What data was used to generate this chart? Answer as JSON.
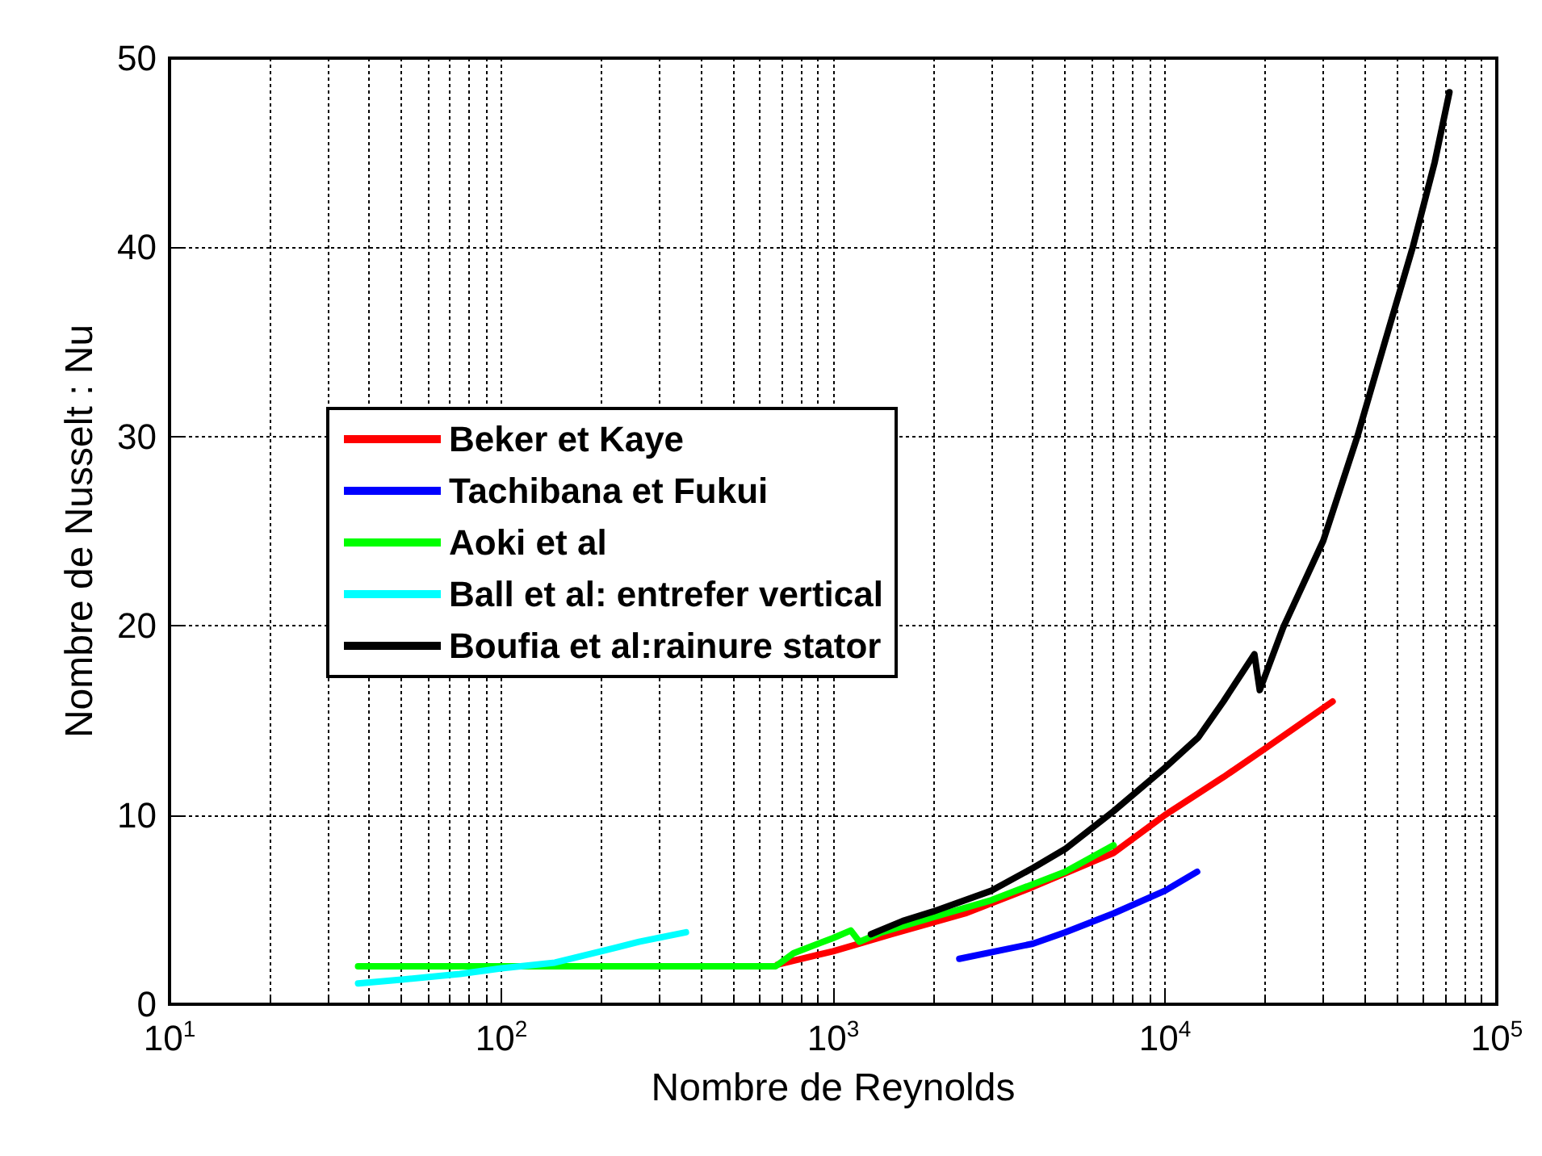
{
  "chart_data": {
    "type": "line",
    "xlabel": "Nombre de Reynolds",
    "ylabel": "Nombre de Nusselt : Nu",
    "log": "x",
    "xlim": [
      10,
      100000
    ],
    "xticks": [
      {
        "value": 10,
        "label": "10$^{1}$"
      },
      {
        "value": 100,
        "label": "10$^{2}$"
      },
      {
        "value": 1000,
        "label": "10$^{3}$"
      },
      {
        "value": 10000,
        "label": "10$^{4}$"
      },
      {
        "value": 100000,
        "label": "10$^{5}$"
      }
    ],
    "ylim": [
      0,
      50
    ],
    "yticks": [
      0,
      10,
      20,
      30,
      40,
      50
    ],
    "grid": true,
    "legend": "center",
    "marker": "none",
    "line_style": "solid",
    "series": [
      {
        "name": "Beker et Kaye",
        "color": "#ff0000",
        "x": [
          680,
          1000,
          1500,
          2500,
          4000,
          7000,
          10000,
          15000,
          20000,
          32000
        ],
        "values": [
          2.1,
          2.8,
          3.7,
          4.8,
          6.2,
          8.0,
          10.0,
          12.0,
          13.5,
          16.0
        ]
      },
      {
        "name": "Tachibana et Fukui",
        "color": "#0000ff",
        "x": [
          2400,
          4000,
          5000,
          7000,
          10000,
          12500
        ],
        "values": [
          2.4,
          3.2,
          3.8,
          4.8,
          6.0,
          7.0
        ]
      },
      {
        "name": "Aoki et al",
        "color": "#00ff00",
        "x": [
          37,
          670,
          760,
          1000,
          1130,
          1200,
          1400,
          2000,
          3000,
          5000,
          7000
        ],
        "values": [
          2.0,
          2.0,
          2.7,
          3.5,
          3.9,
          3.3,
          3.8,
          4.6,
          5.5,
          7.0,
          8.4
        ]
      },
      {
        "name": "Ball et al: entrefer vertical",
        "color": "#00ffff",
        "x": [
          37,
          50,
          75,
          100,
          145,
          200,
          260,
          360
        ],
        "values": [
          1.1,
          1.3,
          1.6,
          1.9,
          2.2,
          2.8,
          3.3,
          3.8
        ]
      },
      {
        "name": "Boufia et al:rainure stator",
        "color": "#000000",
        "x": [
          1300,
          1620,
          2000,
          3000,
          4000,
          5000,
          7000,
          10000,
          12600,
          15000,
          18600,
          19300,
          22700,
          30000,
          38000,
          46000,
          55800,
          65000,
          72000
        ],
        "values": [
          3.7,
          4.4,
          4.9,
          6.0,
          7.2,
          8.2,
          10.2,
          12.5,
          14.1,
          16.0,
          18.5,
          16.6,
          19.9,
          24.5,
          30.0,
          35.0,
          40.0,
          44.5,
          48.2
        ]
      }
    ]
  }
}
